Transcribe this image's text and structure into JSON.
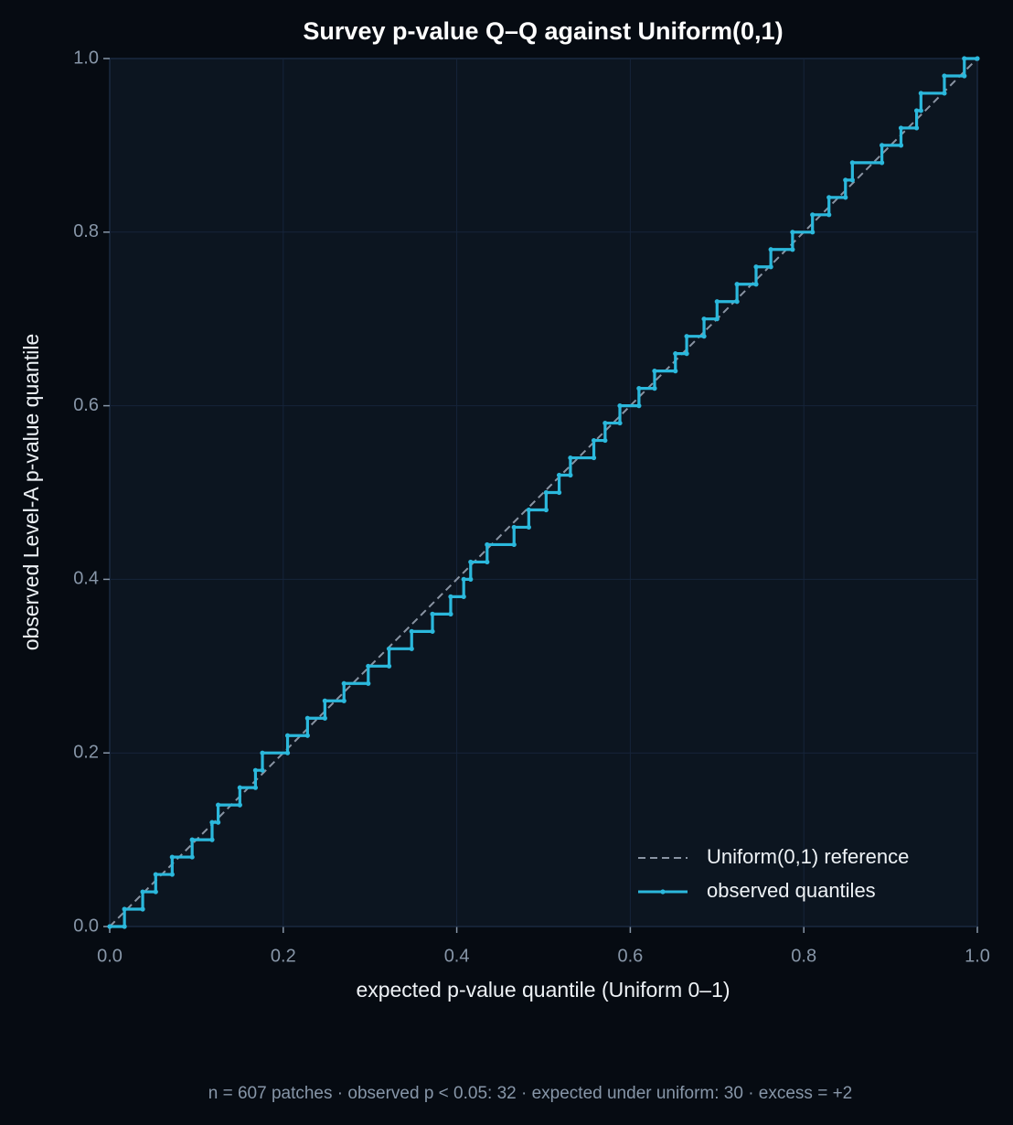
{
  "chart_data": {
    "type": "line",
    "title": "Survey p-value Q–Q against Uniform(0,1)",
    "x_label": "expected p-value quantile (Uniform 0–1)",
    "y_label": "observed Level-A p-value quantile",
    "footer": "n = 607 patches  ·  observed p < 0.05: 32  ·  expected under uniform: 30  ·  excess = +2",
    "xlim": [
      0,
      1
    ],
    "ylim": [
      0,
      1
    ],
    "xticks": [
      {
        "value": 0,
        "label": "0.0"
      },
      0.2,
      0.4,
      0.6,
      0.8,
      {
        "value": 1,
        "label": "1.0"
      }
    ],
    "yticks": [
      {
        "value": 0,
        "label": "0.0"
      },
      0.2,
      0.4,
      0.6,
      0.8,
      {
        "value": 1,
        "label": "1.0"
      }
    ],
    "grid": true,
    "legend": "lower right",
    "series": [
      {
        "name": "Uniform(0,1) reference",
        "color": "#8a94a3",
        "linestyle": "dashed",
        "marker": false,
        "x": [
          0,
          1
        ],
        "values": [
          0,
          1
        ]
      },
      {
        "name": "observed quantiles",
        "color": "#2bb8dc",
        "linestyle": "solid",
        "marker": true,
        "x": [
          0,
          0.017,
          0.017,
          0.038,
          0.038,
          0.053,
          0.053,
          0.072,
          0.072,
          0.095,
          0.095,
          0.118,
          0.118,
          0.125,
          0.125,
          0.15,
          0.15,
          0.168,
          0.168,
          0.176,
          0.176,
          0.205,
          0.205,
          0.228,
          0.228,
          0.248,
          0.248,
          0.27,
          0.27,
          0.298,
          0.298,
          0.322,
          0.322,
          0.348,
          0.348,
          0.372,
          0.372,
          0.393,
          0.393,
          0.408,
          0.408,
          0.416,
          0.416,
          0.435,
          0.435,
          0.466,
          0.466,
          0.483,
          0.483,
          0.503,
          0.503,
          0.518,
          0.518,
          0.531,
          0.531,
          0.558,
          0.558,
          0.571,
          0.571,
          0.588,
          0.588,
          0.61,
          0.61,
          0.628,
          0.628,
          0.652,
          0.652,
          0.665,
          0.665,
          0.685,
          0.685,
          0.7,
          0.7,
          0.723,
          0.723,
          0.745,
          0.745,
          0.762,
          0.762,
          0.787,
          0.787,
          0.81,
          0.81,
          0.829,
          0.829,
          0.848,
          0.848,
          0.856,
          0.856,
          0.89,
          0.89,
          0.912,
          0.912,
          0.93,
          0.93,
          0.935,
          0.935,
          0.962,
          0.962,
          0.985,
          0.985,
          1
        ],
        "values": [
          0,
          0,
          0.02,
          0.02,
          0.04,
          0.04,
          0.06,
          0.06,
          0.08,
          0.08,
          0.1,
          0.1,
          0.12,
          0.12,
          0.14,
          0.14,
          0.16,
          0.16,
          0.18,
          0.18,
          0.2,
          0.2,
          0.22,
          0.22,
          0.24,
          0.24,
          0.26,
          0.26,
          0.28,
          0.28,
          0.3,
          0.3,
          0.32,
          0.32,
          0.34,
          0.34,
          0.36,
          0.36,
          0.38,
          0.38,
          0.4,
          0.4,
          0.42,
          0.42,
          0.44,
          0.44,
          0.46,
          0.46,
          0.48,
          0.48,
          0.5,
          0.5,
          0.52,
          0.52,
          0.54,
          0.54,
          0.56,
          0.56,
          0.58,
          0.58,
          0.6,
          0.6,
          0.62,
          0.62,
          0.64,
          0.64,
          0.66,
          0.66,
          0.68,
          0.68,
          0.7,
          0.7,
          0.72,
          0.72,
          0.74,
          0.74,
          0.76,
          0.76,
          0.78,
          0.78,
          0.8,
          0.8,
          0.82,
          0.82,
          0.84,
          0.84,
          0.86,
          0.86,
          0.88,
          0.88,
          0.9,
          0.9,
          0.92,
          0.92,
          0.94,
          0.94,
          0.96,
          0.96,
          0.98,
          0.98,
          1,
          1
        ]
      }
    ]
  }
}
